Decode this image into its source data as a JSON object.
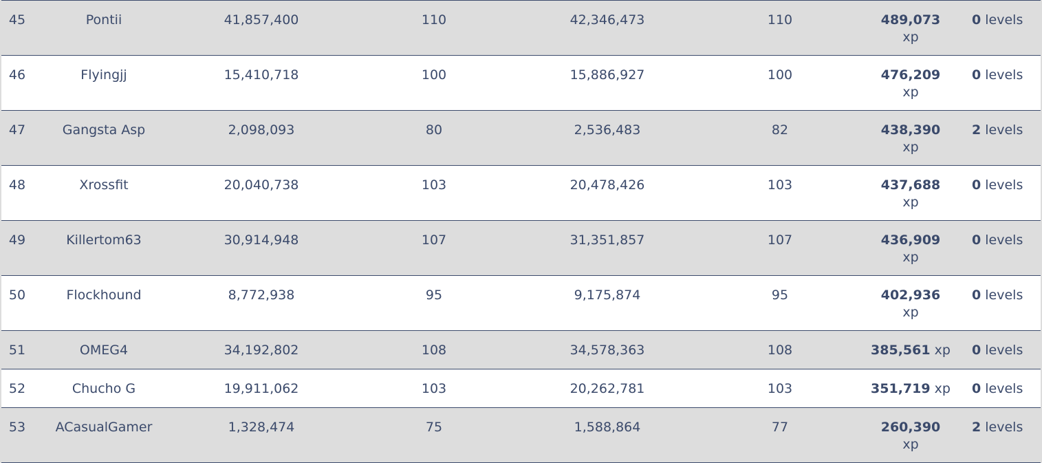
{
  "rows": [
    {
      "rank": "45",
      "name": "Pontii",
      "xp_before": "41,857,400",
      "level_before": "110",
      "xp_after": "42,346,473",
      "level_after": "110",
      "xp_gained": "489,073",
      "xp_unit": "xp",
      "levels_gained": "0",
      "levels_unit": "levels"
    },
    {
      "rank": "46",
      "name": "Flyingjj",
      "xp_before": "15,410,718",
      "level_before": "100",
      "xp_after": "15,886,927",
      "level_after": "100",
      "xp_gained": "476,209",
      "xp_unit": "xp",
      "levels_gained": "0",
      "levels_unit": "levels"
    },
    {
      "rank": "47",
      "name": "Gangsta Asp",
      "xp_before": "2,098,093",
      "level_before": "80",
      "xp_after": "2,536,483",
      "level_after": "82",
      "xp_gained": "438,390",
      "xp_unit": "xp",
      "levels_gained": "2",
      "levels_unit": "levels"
    },
    {
      "rank": "48",
      "name": "Xrossfit",
      "xp_before": "20,040,738",
      "level_before": "103",
      "xp_after": "20,478,426",
      "level_after": "103",
      "xp_gained": "437,688",
      "xp_unit": "xp",
      "levels_gained": "0",
      "levels_unit": "levels"
    },
    {
      "rank": "49",
      "name": "Killertom63",
      "xp_before": "30,914,948",
      "level_before": "107",
      "xp_after": "31,351,857",
      "level_after": "107",
      "xp_gained": "436,909",
      "xp_unit": "xp",
      "levels_gained": "0",
      "levels_unit": "levels"
    },
    {
      "rank": "50",
      "name": "Flockhound",
      "xp_before": "8,772,938",
      "level_before": "95",
      "xp_after": "9,175,874",
      "level_after": "95",
      "xp_gained": "402,936",
      "xp_unit": "xp",
      "levels_gained": "0",
      "levels_unit": "levels"
    },
    {
      "rank": "51",
      "name": "OMEG4",
      "xp_before": "34,192,802",
      "level_before": "108",
      "xp_after": "34,578,363",
      "level_after": "108",
      "xp_gained": "385,561",
      "xp_unit": "xp",
      "levels_gained": "0",
      "levels_unit": "levels"
    },
    {
      "rank": "52",
      "name": "Chucho G",
      "xp_before": "19,911,062",
      "level_before": "103",
      "xp_after": "20,262,781",
      "level_after": "103",
      "xp_gained": "351,719",
      "xp_unit": "xp",
      "levels_gained": "0",
      "levels_unit": "levels"
    },
    {
      "rank": "53",
      "name": "ACasualGamer",
      "xp_before": "1,328,474",
      "level_before": "75",
      "xp_after": "1,588,864",
      "level_after": "77",
      "xp_gained": "260,390",
      "xp_unit": "xp",
      "levels_gained": "2",
      "levels_unit": "levels"
    }
  ],
  "colors": {
    "row_gray": "#dddddd",
    "row_white": "#ffffff",
    "text": "#3b4a6b",
    "border": "#3b4a6b"
  }
}
